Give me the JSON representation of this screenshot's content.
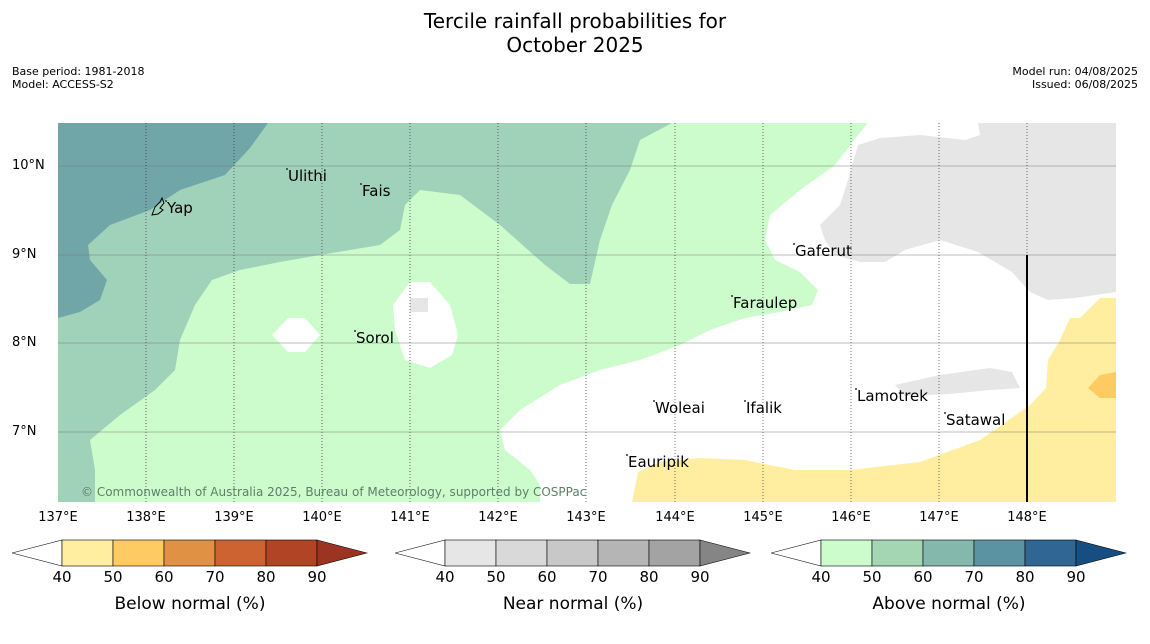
{
  "title": [
    "Tercile rainfall probabilities for",
    "October 2025"
  ],
  "meta_left": [
    "Base period: 1981-2018",
    "Model: ACCESS-S2"
  ],
  "meta_right": [
    "Model run: 04/08/2025",
    "Issued: 06/08/2025"
  ],
  "latitude_labels": [
    "10°N",
    "9°N",
    "8°N",
    "7°N"
  ],
  "longitude_labels": [
    "137°E",
    "138°E",
    "139°E",
    "140°E",
    "141°E",
    "142°E",
    "143°E",
    "144°E",
    "145°E",
    "146°E",
    "147°E",
    "148°E"
  ],
  "places": [
    "Yap",
    "Ulithi",
    "Fais",
    "Sorol",
    "Gaferut",
    "Faraulep",
    "Woleai",
    "Ifalik",
    "Eauripik",
    "Lamotrek",
    "Satawal"
  ],
  "copyright": "© Commonwealth of Australia 2025, Bureau of Meteorology, supported by COSPPac",
  "colorbars": [
    {
      "label": "Below normal (%)",
      "ticks": [
        "40",
        "50",
        "60",
        "70",
        "80",
        "90"
      ],
      "colors": [
        "#ffeea0",
        "#fecb63",
        "#e19143",
        "#cd6331",
        "#b04424",
        "#9b3522"
      ]
    },
    {
      "label": "Near normal (%)",
      "ticks": [
        "40",
        "50",
        "60",
        "70",
        "80",
        "90"
      ],
      "colors": [
        "#e6e6e6",
        "#d9d9d9",
        "#c8c8c8",
        "#b5b5b5",
        "#a3a3a3",
        "#858585"
      ]
    },
    {
      "label": "Above normal (%)",
      "ticks": [
        "40",
        "50",
        "60",
        "70",
        "80",
        "90"
      ],
      "colors": [
        "#ccfccc",
        "#a4d6b4",
        "#84b8ac",
        "#5b93a2",
        "#306693",
        "#164e82"
      ]
    }
  ]
}
